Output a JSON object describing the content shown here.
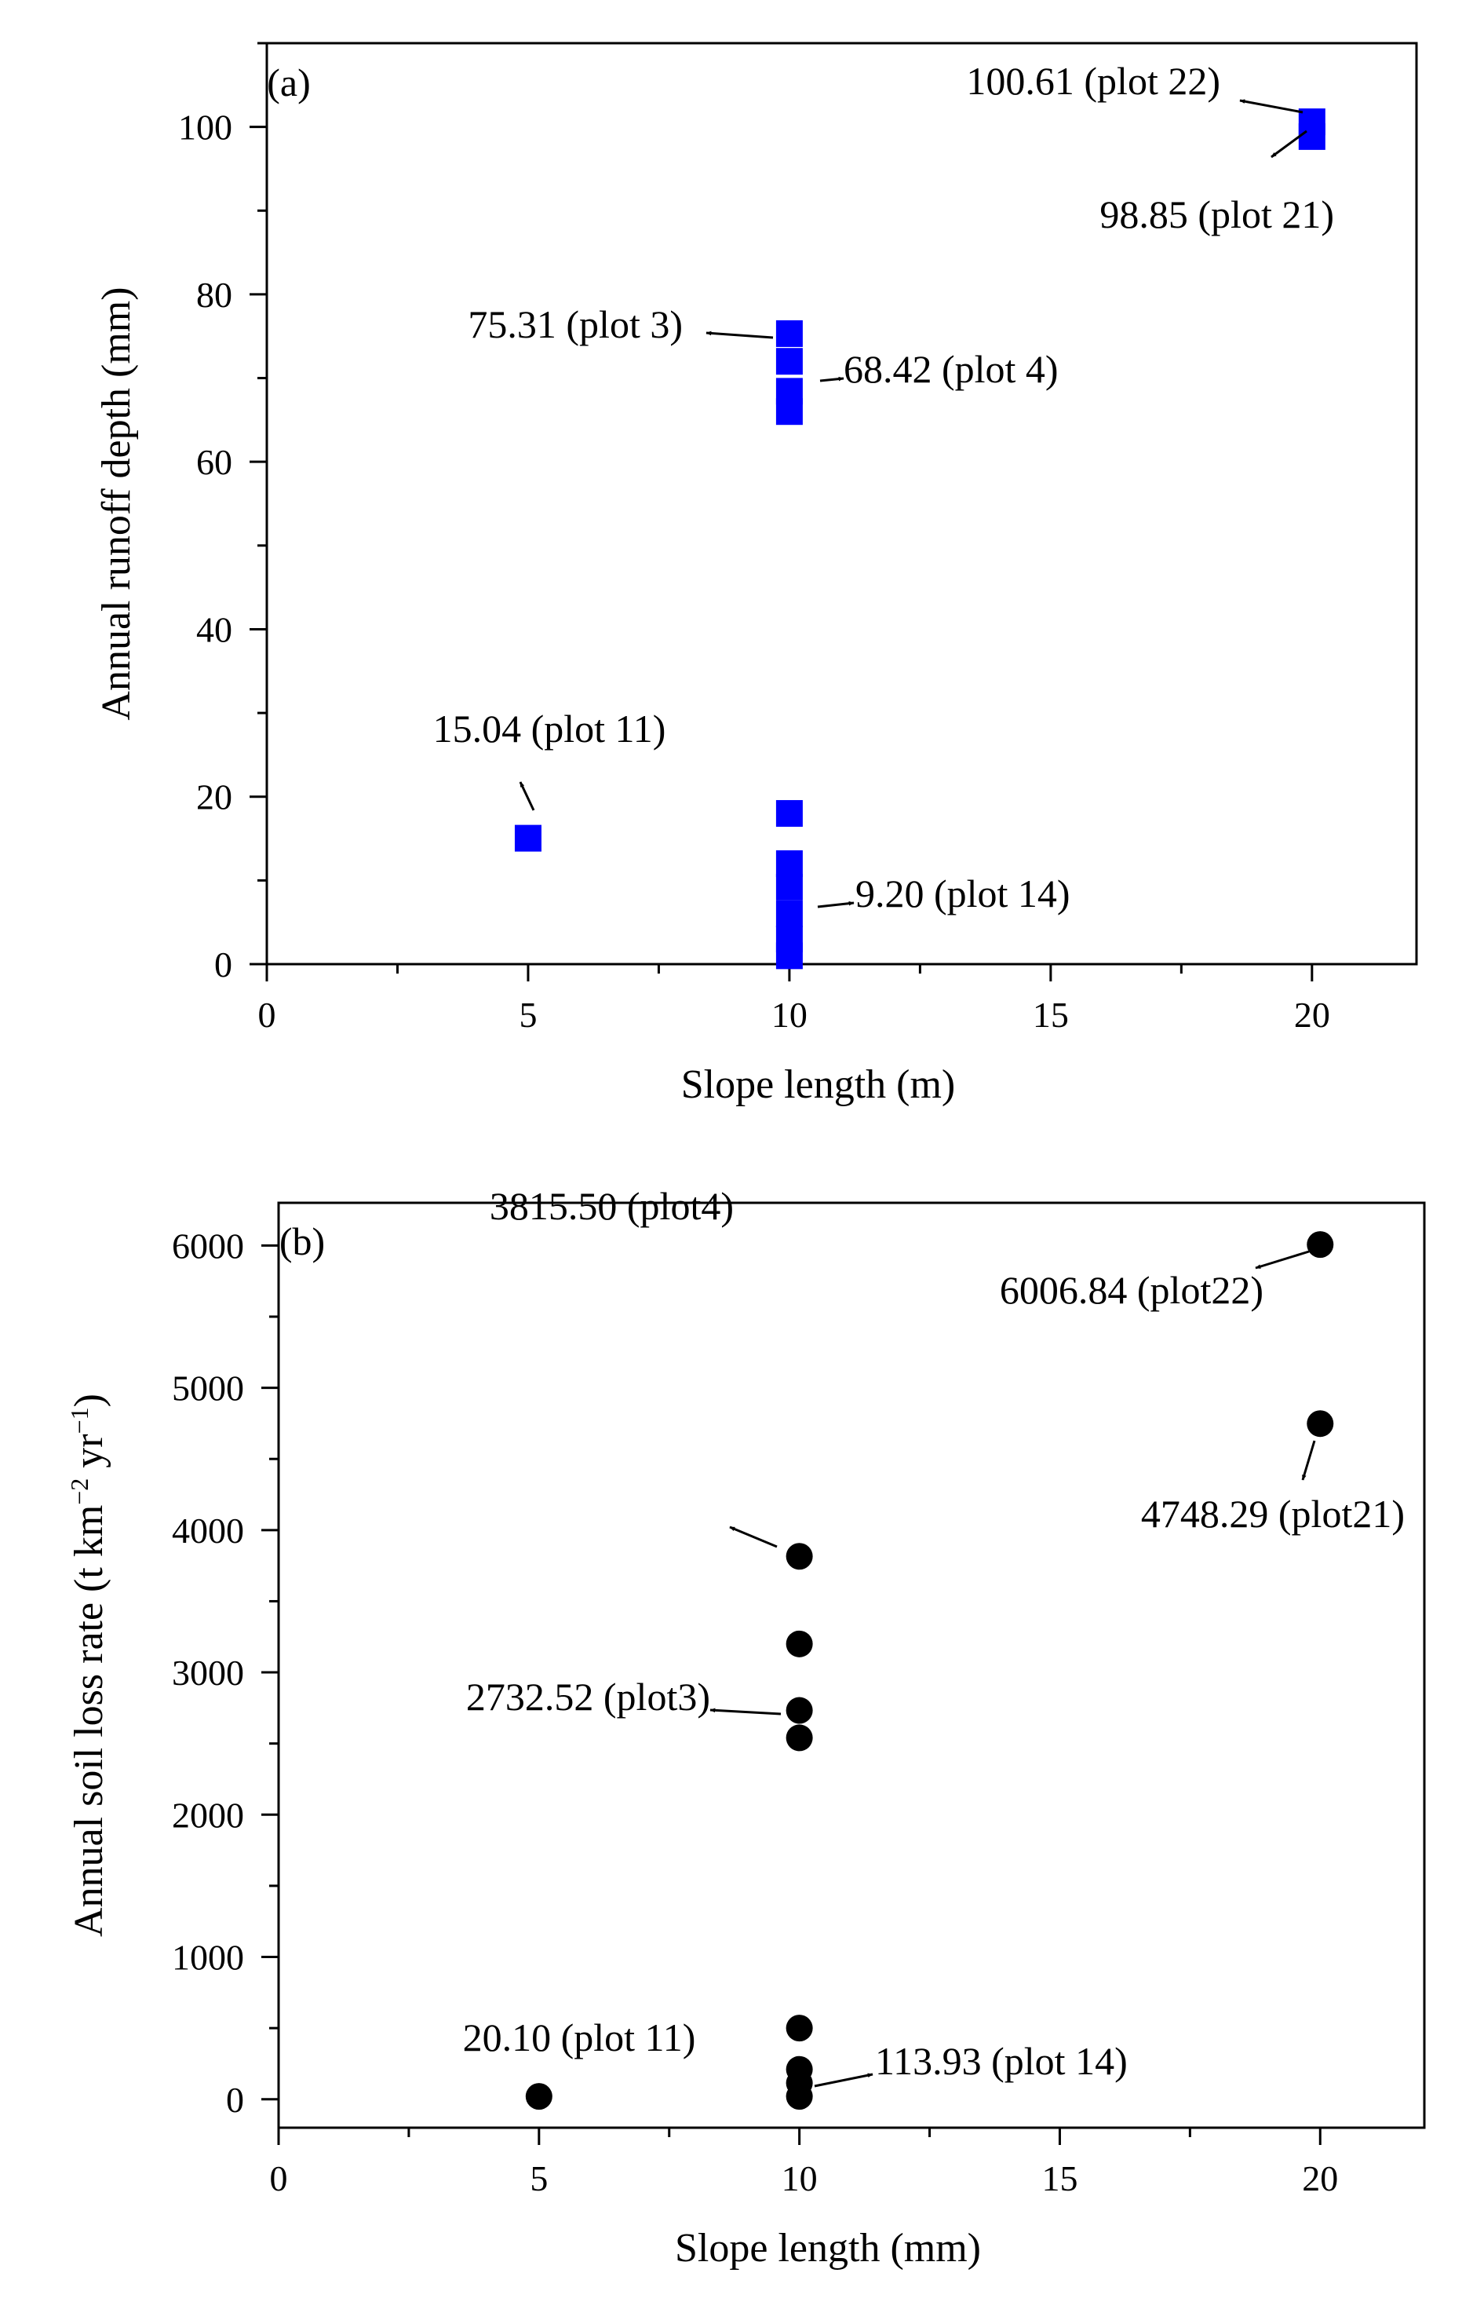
{
  "chart_data": [
    {
      "type": "scatter",
      "panel_label": "(a)",
      "xlabel": "Slope length (m)",
      "ylabel": "Annual runoff depth (mm)",
      "xlim": [
        0,
        22
      ],
      "ylim": [
        0,
        110
      ],
      "xticks": [
        0,
        5,
        10,
        15,
        20
      ],
      "yticks": [
        0,
        20,
        40,
        60,
        80,
        100
      ],
      "xtick_labels": [
        "0",
        "5",
        "10",
        "15",
        "20"
      ],
      "ytick_labels": [
        "0",
        "20",
        "40",
        "60",
        "80",
        "100"
      ],
      "marker": "square",
      "marker_color": "#0000ff",
      "points": [
        {
          "x": 5,
          "y": 15.04
        },
        {
          "x": 10,
          "y": 18.0
        },
        {
          "x": 10,
          "y": 12.0
        },
        {
          "x": 10,
          "y": 9.2
        },
        {
          "x": 10,
          "y": 6.0
        },
        {
          "x": 10,
          "y": 3.0
        },
        {
          "x": 10,
          "y": 1.0
        },
        {
          "x": 10,
          "y": 75.31
        },
        {
          "x": 10,
          "y": 72.0
        },
        {
          "x": 10,
          "y": 68.42
        },
        {
          "x": 10,
          "y": 66.0
        },
        {
          "x": 20,
          "y": 98.85
        },
        {
          "x": 20,
          "y": 100.61
        }
      ],
      "annotations": [
        {
          "text": "100.61 (plot 22)",
          "x": 20,
          "y": 100.61
        },
        {
          "text": "98.85 (plot 21)",
          "x": 20,
          "y": 98.85
        },
        {
          "text": "75.31 (plot 3)",
          "x": 10,
          "y": 75.31
        },
        {
          "text": "68.42 (plot 4)",
          "x": 10,
          "y": 68.42
        },
        {
          "text": "15.04 (plot 11)",
          "x": 5,
          "y": 15.04
        },
        {
          "text": "9.20 (plot 14)",
          "x": 10,
          "y": 9.2
        }
      ]
    },
    {
      "type": "scatter",
      "panel_label": "(b)",
      "xlabel": "Slope length (mm)",
      "ylabel": "Annual soil loss rate (t km",
      "ylabel_sup1": "−2",
      "ylabel_mid": " yr",
      "ylabel_sup2": "−1",
      "ylabel_end": ")",
      "xlim": [
        0,
        22
      ],
      "ylim": [
        -200,
        6300
      ],
      "xticks": [
        0,
        5,
        10,
        15,
        20
      ],
      "yticks": [
        0,
        1000,
        2000,
        3000,
        4000,
        5000,
        6000
      ],
      "xtick_labels": [
        "0",
        "5",
        "10",
        "15",
        "20"
      ],
      "ytick_labels": [
        "0",
        "1000",
        "2000",
        "3000",
        "4000",
        "5000",
        "6000"
      ],
      "marker": "circle",
      "marker_color": "#000000",
      "points": [
        {
          "x": 5,
          "y": 20.1
        },
        {
          "x": 10,
          "y": 3815.5
        },
        {
          "x": 10,
          "y": 3200
        },
        {
          "x": 10,
          "y": 2732.52
        },
        {
          "x": 10,
          "y": 2540
        },
        {
          "x": 10,
          "y": 500
        },
        {
          "x": 10,
          "y": 210
        },
        {
          "x": 10,
          "y": 113.93
        },
        {
          "x": 10,
          "y": 20
        },
        {
          "x": 20,
          "y": 6006.84
        },
        {
          "x": 20,
          "y": 4748.29
        }
      ],
      "annotations": [
        {
          "text": "6006.84 (plot22)",
          "x": 20,
          "y": 6006.84
        },
        {
          "text": "4748.29 (plot21)",
          "x": 20,
          "y": 4748.29
        },
        {
          "text": "3815.50 (plot4)",
          "x": 10,
          "y": 3815.5
        },
        {
          "text": "2732.52 (plot3)",
          "x": 10,
          "y": 2732.52
        },
        {
          "text": "20.10 (plot 11)",
          "x": 5,
          "y": 20.1
        },
        {
          "text": "113.93 (plot 14)",
          "x": 10,
          "y": 113.93
        }
      ]
    }
  ]
}
